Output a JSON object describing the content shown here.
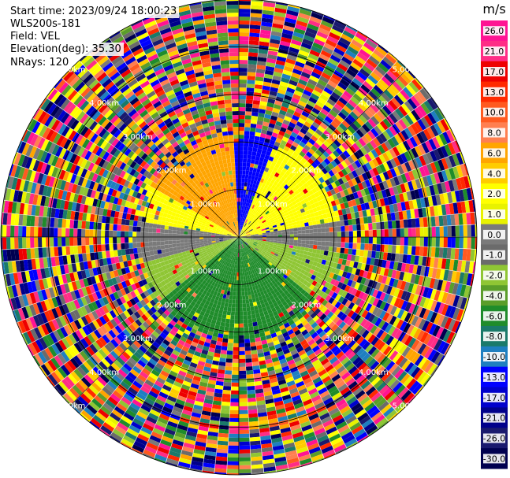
{
  "header": {
    "start_time": "Start time: 2023/09/24 18:00:23",
    "instrument": "WLS200s-181",
    "field": "Field: VEL",
    "elevation": "Elevation(deg): 35.30",
    "nrays": "NRays: 120"
  },
  "chart_data": {
    "type": "heatmap",
    "projection": "polar-ppi",
    "field": "VEL",
    "instrument": "WLS200s-181",
    "start_time": "2023/09/24 18:00:23",
    "elevation_deg": 35.3,
    "nrays": 120,
    "units": "m/s",
    "range_rings_km": [
      1.0,
      2.0,
      3.0,
      4.0,
      5.0
    ],
    "ring_label_text": [
      "1.00km",
      "2.00km",
      "3.00km",
      "4.00km",
      "5.00km"
    ],
    "max_range_km": 5.0,
    "coherent_range_km": 2.25,
    "colorbar": {
      "title": "m/s",
      "tick_labels": [
        "26.0",
        "21.0",
        "17.0",
        "13.0",
        "10.0",
        "8.0",
        "6.0",
        "4.0",
        "2.0",
        "1.0",
        "0.0",
        "-1.0",
        "-2.0",
        "-4.0",
        "-6.0",
        "-8.0",
        "-10.0",
        "-13.0",
        "-17.0",
        "-21.0",
        "-26.0",
        "-30.0"
      ],
      "colors": [
        "#ff1493",
        "#ff2d86",
        "#ee0000",
        "#ff2a00",
        "#ff5a20",
        "#ff7f50",
        "#ffa500",
        "#ffcc00",
        "#ffff00",
        "#e8f200",
        "#7a7a7a",
        "#6b6b6b",
        "#8fc634",
        "#5a9e2a",
        "#1f8c2b",
        "#1a7a6a",
        "#1e7fc0",
        "#0000ff",
        "#0000cc",
        "#00008b",
        "#1a1a6e",
        "#000050"
      ]
    },
    "sectors": [
      {
        "azimuth_deg": [
          300,
          358
        ],
        "velocity_ms": 6.0
      },
      {
        "azimuth_deg": [
          358,
          22
        ],
        "velocity_ms": -13.0
      },
      {
        "azimuth_deg": [
          22,
          80
        ],
        "velocity_ms": 2.0
      },
      {
        "azimuth_deg": [
          80,
          100
        ],
        "velocity_ms": 0.0
      },
      {
        "azimuth_deg": [
          100,
          130
        ],
        "velocity_ms": -2.0
      },
      {
        "azimuth_deg": [
          130,
          230
        ],
        "velocity_ms": -6.0
      },
      {
        "azimuth_deg": [
          230,
          255
        ],
        "velocity_ms": -2.0
      },
      {
        "azimuth_deg": [
          255,
          278
        ],
        "velocity_ms": 0.0
      },
      {
        "azimuth_deg": [
          278,
          300
        ],
        "velocity_ms": 2.0
      }
    ]
  }
}
